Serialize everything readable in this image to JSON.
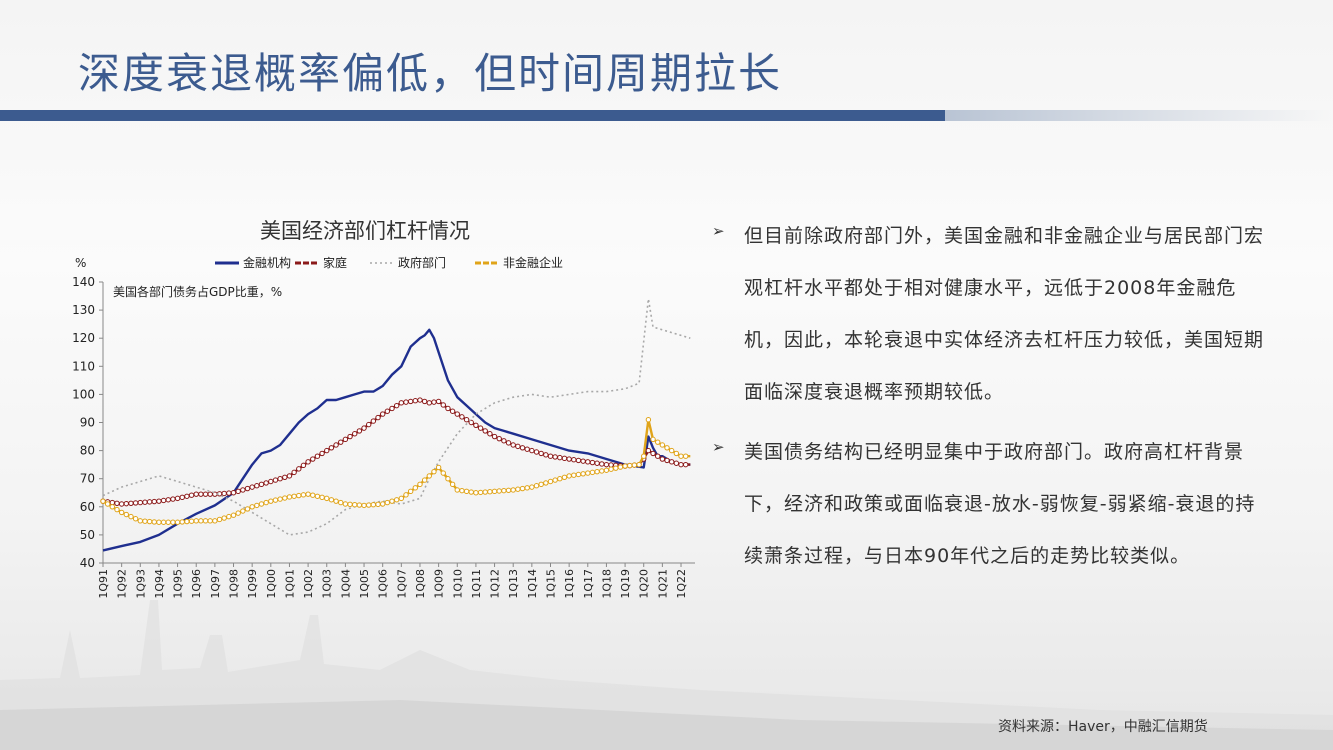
{
  "slide": {
    "title": "深度衰退概率偏低，但时间周期拉长",
    "source": "资料来源：Haver，中融汇信期货"
  },
  "bullets": [
    {
      "text": "但目前除政府部门外，美国金融和非金融企业与居民部门宏观杠杆水平都处于相对健康水平，远低于2008年金融危机，因此，本轮衰退中实体经济去杠杆压力较低，美国短期面临深度衰退概率预期较低。"
    },
    {
      "text": "美国债务结构已经明显集中于政府部门。政府高杠杆背景下，经济和政策或面临衰退-放水-弱恢复-弱紧缩-衰退的持续萧条过程，与日本90年代之后的走势比较类似。"
    }
  ],
  "chart_data": {
    "type": "line",
    "title": "美国经济部们杠杆情况",
    "subtitle": "美国各部门债务占GDP比重，%",
    "ylabel": "%",
    "xlabel": "",
    "ylim": [
      40,
      140
    ],
    "yticks": [
      40,
      50,
      60,
      70,
      80,
      90,
      100,
      110,
      120,
      130,
      140
    ],
    "x_range": [
      1991,
      2022.75
    ],
    "categories": [
      "1Q91",
      "1Q92",
      "1Q93",
      "1Q94",
      "1Q95",
      "1Q96",
      "1Q97",
      "1Q98",
      "1Q99",
      "1Q00",
      "1Q01",
      "1Q02",
      "1Q03",
      "1Q04",
      "1Q05",
      "1Q06",
      "1Q07",
      "1Q08",
      "1Q09",
      "1Q10",
      "1Q11",
      "1Q12",
      "1Q13",
      "1Q14",
      "1Q15",
      "1Q16",
      "1Q17",
      "1Q18",
      "1Q19",
      "1Q20",
      "1Q21",
      "1Q22"
    ],
    "legend_position": "top",
    "series": [
      {
        "name": "金融机构",
        "color": "#1f2f8f",
        "style": "solid",
        "x": [
          1991,
          1992,
          1993,
          1994,
          1995,
          1996,
          1997,
          1998,
          1998.5,
          1999,
          1999.5,
          2000,
          2000.5,
          2001,
          2001.5,
          2002,
          2002.5,
          2003,
          2003.5,
          2004,
          2004.5,
          2005,
          2005.5,
          2006,
          2006.5,
          2007,
          2007.5,
          2008,
          2008.25,
          2008.5,
          2008.75,
          2009,
          2009.5,
          2010,
          2010.5,
          2011,
          2011.5,
          2012,
          2012.5,
          2013,
          2014,
          2015,
          2016,
          2017,
          2018,
          2019,
          2019.5,
          2020,
          2020.25,
          2020.5,
          2020.75,
          2021,
          2021.5,
          2022,
          2022.5
        ],
        "values": [
          44.5,
          46,
          47.5,
          50,
          54,
          57.5,
          60.5,
          65,
          70,
          75,
          79,
          80,
          82,
          86,
          90,
          93,
          95,
          98,
          98,
          99,
          100,
          101,
          101,
          103,
          107,
          110,
          117,
          120,
          121,
          123,
          120,
          115,
          105,
          99,
          96,
          93,
          90,
          88,
          87,
          86,
          84,
          82,
          80,
          79,
          77,
          75,
          74.5,
          74,
          85,
          81,
          78,
          78,
          76,
          75,
          75
        ],
        "markers": false
      },
      {
        "name": "家庭",
        "color": "#8b1a1a",
        "style": "circles",
        "x": [
          1991,
          1992,
          1993,
          1994,
          1995,
          1996,
          1997,
          1998,
          1999,
          2000,
          2001,
          2002,
          2003,
          2004,
          2005,
          2006,
          2007,
          2008,
          2008.5,
          2009,
          2009.5,
          2010,
          2011,
          2012,
          2013,
          2014,
          2015,
          2016,
          2017,
          2018,
          2019,
          2019.75,
          2020,
          2020.25,
          2020.5,
          2021,
          2021.5,
          2022,
          2022.5
        ],
        "values": [
          62,
          61,
          61.5,
          62,
          63,
          64.5,
          64.5,
          65,
          67,
          69,
          71,
          76,
          80,
          84,
          88,
          93,
          97,
          98,
          97,
          97.5,
          95,
          93,
          89,
          85,
          82,
          80,
          78,
          77,
          76,
          75,
          74.5,
          75,
          77,
          80,
          79,
          77,
          76,
          75,
          75
        ],
        "markers": true
      },
      {
        "name": "政府部门",
        "color": "#a8a8a8",
        "style": "dotted",
        "x": [
          1991,
          1992,
          1993,
          1994,
          1995,
          1996,
          1997,
          1998,
          1999,
          2000,
          2001,
          2002,
          2003,
          2004,
          2005,
          2006,
          2007,
          2008,
          2008.5,
          2009,
          2010,
          2011,
          2012,
          2013,
          2014,
          2015,
          2016,
          2017,
          2018,
          2019,
          2019.75,
          2020.25,
          2020.5,
          2021,
          2021.5,
          2022,
          2022.5
        ],
        "values": [
          64,
          67,
          69,
          71,
          69,
          67,
          65,
          62,
          58,
          54,
          50,
          51,
          54,
          59,
          61,
          62,
          61,
          63,
          70,
          76,
          86,
          93,
          97,
          99,
          100,
          99,
          100,
          101,
          101,
          102,
          104,
          134,
          124,
          123,
          122,
          121,
          120
        ],
        "markers": false
      },
      {
        "name": "非金融企业",
        "color": "#e0a419",
        "style": "circles",
        "x": [
          1991,
          1992,
          1993,
          1994,
          1995,
          1996,
          1997,
          1998,
          1999,
          2000,
          2001,
          2002,
          2003,
          2004,
          2005,
          2006,
          2007,
          2008,
          2008.5,
          2009,
          2009.5,
          2010,
          2011,
          2012,
          2013,
          2014,
          2015,
          2016,
          2017,
          2018,
          2019,
          2019.75,
          2020,
          2020.25,
          2020.5,
          2021,
          2021.5,
          2022,
          2022.5
        ],
        "values": [
          62,
          58,
          55,
          54.5,
          54.5,
          55,
          55,
          57,
          60,
          62,
          63.5,
          64.5,
          63,
          61,
          60.5,
          61,
          63,
          68,
          71,
          74,
          70,
          66,
          65,
          65.5,
          66,
          67,
          69,
          71,
          72,
          73,
          74.5,
          75,
          78,
          91,
          84,
          82,
          80,
          78,
          78
        ],
        "markers": true
      }
    ]
  }
}
